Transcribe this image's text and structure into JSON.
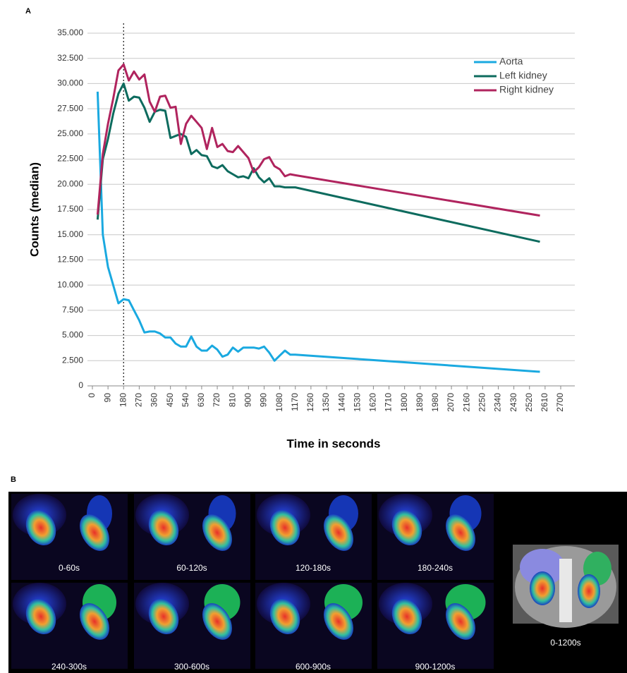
{
  "chart_data": {
    "type": "line",
    "panel_label": "A",
    "x_label": "Time in seconds",
    "y_label": "Counts (median)",
    "x": [
      30,
      60,
      90,
      120,
      150,
      180,
      210,
      240,
      270,
      300,
      330,
      360,
      390,
      420,
      450,
      480,
      510,
      540,
      570,
      600,
      630,
      660,
      690,
      720,
      750,
      780,
      810,
      840,
      870,
      900,
      930,
      960,
      990,
      1020,
      1050,
      1080,
      1110,
      1140,
      1170,
      2580
    ],
    "series": [
      {
        "name": "Aorta",
        "color": "#1aa9e0",
        "values": [
          29200,
          15000,
          11800,
          10000,
          8200,
          8600,
          8500,
          7500,
          6500,
          5300,
          5400,
          5400,
          5200,
          4800,
          4800,
          4200,
          3900,
          3900,
          4900,
          3900,
          3500,
          3500,
          4000,
          3600,
          2900,
          3100,
          3800,
          3400,
          3800,
          3800,
          3800,
          3700,
          3900,
          3300,
          2500,
          3000,
          3500,
          3100,
          3100,
          1400
        ]
      },
      {
        "name": "Left kidney",
        "color": "#0d6b5e",
        "values": [
          16500,
          22500,
          24500,
          27000,
          29000,
          30000,
          28300,
          28700,
          28600,
          27600,
          26200,
          27200,
          27400,
          27300,
          24600,
          24800,
          25000,
          24700,
          23000,
          23400,
          22900,
          22800,
          21800,
          21600,
          21900,
          21300,
          21000,
          20700,
          20800,
          20600,
          21600,
          20700,
          20200,
          20600,
          19800,
          19800,
          19700,
          19700,
          19700,
          14300
        ]
      },
      {
        "name": "Right kidney",
        "color": "#b0245e",
        "values": [
          17000,
          23000,
          26000,
          28500,
          31300,
          31900,
          30300,
          31200,
          30400,
          30900,
          28200,
          27200,
          28700,
          28800,
          27600,
          27700,
          24000,
          26000,
          26800,
          26200,
          25600,
          23500,
          25600,
          23700,
          24000,
          23300,
          23200,
          23800,
          23200,
          22600,
          21200,
          21700,
          22500,
          22700,
          21800,
          21500,
          20800,
          21000,
          20900,
          16900
        ]
      }
    ],
    "reference_x": 180,
    "xlim": [
      0,
      2700
    ],
    "xticks": [
      0,
      90,
      180,
      270,
      360,
      450,
      540,
      630,
      720,
      810,
      900,
      990,
      1080,
      1170,
      1260,
      1350,
      1440,
      1530,
      1620,
      1710,
      1800,
      1890,
      1980,
      2070,
      2160,
      2250,
      2340,
      2430,
      2520,
      2610,
      2700
    ],
    "ylim": [
      0,
      35000
    ],
    "yticks": [
      0,
      {
        "value": 2500,
        "label": "2.500"
      },
      {
        "value": 5000,
        "label": "5.000"
      },
      {
        "value": 7500,
        "label": "7.500"
      },
      {
        "value": 10000,
        "label": "10.000"
      },
      {
        "value": 12500,
        "label": "12.500"
      },
      {
        "value": 15000,
        "label": "15.000"
      },
      {
        "value": 17500,
        "label": "17.500"
      },
      {
        "value": 20000,
        "label": "20.000"
      },
      {
        "value": 22500,
        "label": "22.500"
      },
      {
        "value": 25000,
        "label": "25.000"
      },
      {
        "value": 27500,
        "label": "27.500"
      },
      {
        "value": 30000,
        "label": "30.000"
      },
      {
        "value": 32500,
        "label": "32.500"
      },
      {
        "value": 35000,
        "label": "35.000"
      }
    ],
    "grid": true,
    "legend": "top-right"
  },
  "panel_b": {
    "label": "B",
    "frames": [
      "0-60s",
      "60-120s",
      "120-180s",
      "180-240s",
      "240-300s",
      "300-600s",
      "600-900s",
      "900-1200s"
    ],
    "overlay": "0-1200s"
  }
}
